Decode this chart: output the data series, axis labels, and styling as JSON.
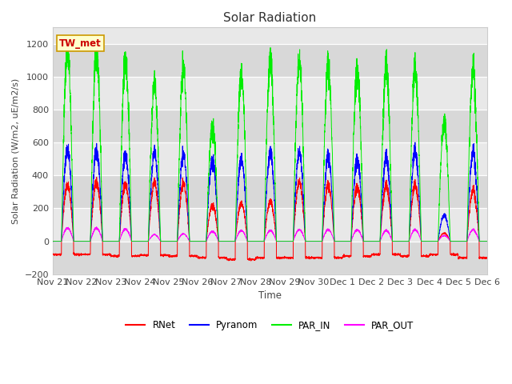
{
  "title": "Solar Radiation",
  "ylabel": "Solar Radiation (W/m2, uE/m2/s)",
  "xlabel": "Time",
  "site_label": "TW_met",
  "yticks": [
    -200,
    0,
    200,
    400,
    600,
    800,
    1000,
    1200
  ],
  "xtick_labels": [
    "Nov 21",
    "Nov 22",
    "Nov 23",
    "Nov 24",
    "Nov 25",
    "Nov 26",
    "Nov 27",
    "Nov 28",
    "Nov 29",
    "Nov 30",
    "Dec 1",
    "Dec 2",
    "Dec 3",
    "Dec 4",
    "Dec 5",
    "Dec 6"
  ],
  "legend": [
    {
      "label": "RNet",
      "color": "#ff0000"
    },
    {
      "label": "Pyranom",
      "color": "#0000ff"
    },
    {
      "label": "PAR_IN",
      "color": "#00ee00"
    },
    {
      "label": "PAR_OUT",
      "color": "#ff00ff"
    }
  ],
  "bg_color": "#e8e8e8",
  "fig_bg": "#ffffff",
  "n_days": 15,
  "pts_per_day": 288,
  "par_in_peaks": [
    1160,
    1155,
    1110,
    940,
    1050,
    700,
    1010,
    1090,
    1090,
    1060,
    1055,
    1050,
    1040,
    730,
    1040
  ],
  "pyranom_peaks": [
    555,
    550,
    530,
    530,
    525,
    495,
    500,
    535,
    540,
    515,
    505,
    505,
    545,
    160,
    540
  ],
  "rnet_peaks": [
    340,
    360,
    350,
    350,
    350,
    220,
    230,
    240,
    360,
    340,
    335,
    335,
    340,
    50,
    310
  ],
  "par_out_peaks": [
    80,
    80,
    75,
    40,
    45,
    60,
    65,
    65,
    70,
    70,
    70,
    65,
    70,
    35,
    70
  ],
  "rnet_night": [
    -80,
    -80,
    -90,
    -85,
    -90,
    -100,
    -110,
    -100,
    -100,
    -100,
    -90,
    -80,
    -90,
    -80,
    -100
  ]
}
